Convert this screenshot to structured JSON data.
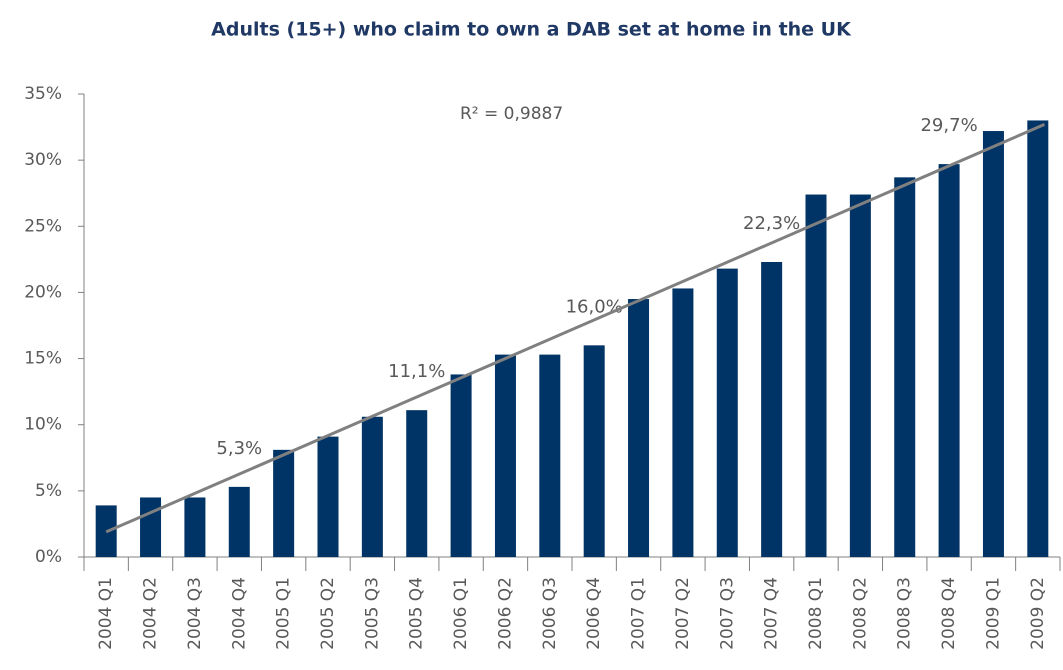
{
  "chart_data": {
    "type": "bar",
    "title": "Adults (15+) who claim to own a DAB set at home in the UK",
    "categories": [
      "2004 Q1",
      "2004 Q2",
      "2004 Q3",
      "2004 Q4",
      "2005 Q1",
      "2005 Q2",
      "2005 Q3",
      "2005 Q4",
      "2006 Q1",
      "2006 Q2",
      "2006 Q3",
      "2006 Q4",
      "2007 Q1",
      "2007 Q2",
      "2007 Q3",
      "2007 Q4",
      "2008 Q1",
      "2008 Q2",
      "2008 Q3",
      "2008 Q4",
      "2009 Q1",
      "2009 Q2"
    ],
    "values": [
      3.9,
      4.5,
      4.5,
      5.3,
      8.1,
      9.1,
      10.6,
      11.1,
      13.8,
      15.3,
      15.3,
      16.0,
      19.5,
      20.3,
      21.8,
      22.3,
      27.4,
      27.4,
      28.7,
      29.7,
      32.2,
      33.0
    ],
    "value_labels": [
      null,
      null,
      null,
      "5,3%",
      null,
      null,
      null,
      "11,1%",
      null,
      null,
      null,
      "16,0%",
      null,
      null,
      null,
      "22,3%",
      null,
      null,
      null,
      "29,7%",
      null,
      null
    ],
    "color": "#003366",
    "ylim": [
      0,
      35
    ],
    "yticks": [
      {
        "value": 0,
        "label": "0%"
      },
      {
        "value": 5,
        "label": "5%"
      },
      {
        "value": 10,
        "label": "10%"
      },
      {
        "value": 15,
        "label": "15%"
      },
      {
        "value": 20,
        "label": "20%"
      },
      {
        "value": 25,
        "label": "25%"
      },
      {
        "value": 30,
        "label": "30%"
      },
      {
        "value": 35,
        "label": "35%"
      }
    ],
    "trendline": {
      "label": "R² = 0,9887",
      "start": 1.9,
      "end": 32.7,
      "color": "#808080"
    }
  }
}
